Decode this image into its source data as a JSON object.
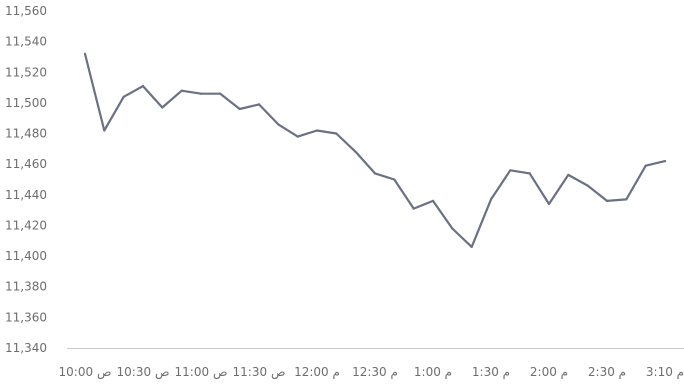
{
  "chart_data": {
    "type": "line",
    "title": "",
    "xlabel": "",
    "ylabel": "",
    "ylim": [
      11340,
      11560
    ],
    "ytick_step": 20,
    "grid": false,
    "legend": "none",
    "colors": {
      "line": "#6b7185",
      "axis": "#c8c8c8",
      "text": "#6e6e6e"
    },
    "x_tick_labels": [
      "10:00 ص",
      "10:30 ص",
      "11:00 ص",
      "11:30 ص",
      "12:00 م",
      "12:30 م",
      "1:00 م",
      "1:30 م",
      "2:00 م",
      "2:30 م",
      "3:10 م"
    ],
    "x_tick_positions": [
      0,
      3,
      6,
      9,
      12,
      15,
      18,
      21,
      24,
      27,
      30
    ],
    "series": [
      {
        "values": [
          11532,
          11482,
          11504,
          11511,
          11497,
          11508,
          11506,
          11506,
          11496,
          11499,
          11486,
          11478,
          11482,
          11480,
          11468,
          11454,
          11450,
          11431,
          11436,
          11418,
          11406,
          11437,
          11456,
          11454,
          11434,
          11453,
          11446,
          11436,
          11437,
          11459,
          11462
        ]
      }
    ]
  }
}
